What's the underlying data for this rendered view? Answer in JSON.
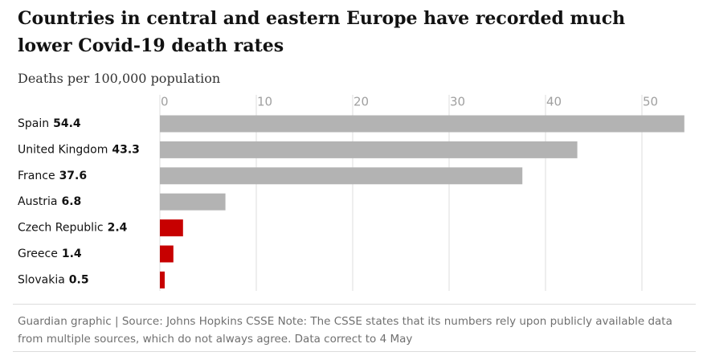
{
  "chart_data": {
    "type": "hbar",
    "title": "Countries in central and eastern Europe have recorded much lower Covid-19 death rates",
    "subtitle": "Deaths per 100,000 population",
    "categories": [
      "Spain",
      "United Kingdom",
      "France",
      "Austria",
      "Czech Republic",
      "Greece",
      "Slovakia"
    ],
    "values": [
      54.4,
      43.3,
      37.6,
      6.8,
      2.4,
      1.4,
      0.5
    ],
    "colors": [
      "#b3b3b3",
      "#b3b3b3",
      "#b3b3b3",
      "#b3b3b3",
      "#c70000",
      "#c70000",
      "#c70000"
    ],
    "xlim": [
      0,
      55
    ],
    "xticks": [
      0,
      10,
      20,
      30,
      40,
      50
    ],
    "grid": true,
    "source": "Guardian graphic | Source: Johns Hopkins CSSE Note: The CSSE states that its numbers rely upon publicly available data from multiple sources, which do not always agree. Data correct to 4 May"
  }
}
